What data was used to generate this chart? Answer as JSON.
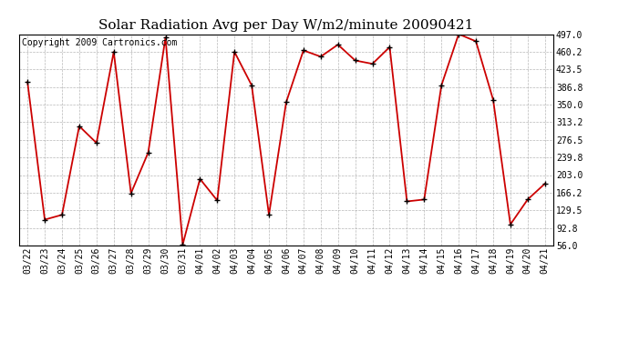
{
  "title": "Solar Radiation Avg per Day W/m2/minute 20090421",
  "copyright_text": "Copyright 2009 Cartronics.com",
  "labels": [
    "03/22",
    "03/23",
    "03/24",
    "03/25",
    "03/26",
    "03/27",
    "03/28",
    "03/29",
    "03/30",
    "03/31",
    "04/01",
    "04/02",
    "04/03",
    "04/04",
    "04/05",
    "04/06",
    "04/07",
    "04/08",
    "04/09",
    "04/10",
    "04/11",
    "04/12",
    "04/13",
    "04/14",
    "04/15",
    "04/16",
    "04/17",
    "04/18",
    "04/19",
    "04/20",
    "04/21"
  ],
  "values": [
    397,
    110,
    120,
    305,
    270,
    460,
    165,
    250,
    490,
    58,
    195,
    150,
    460,
    390,
    120,
    355,
    463,
    450,
    475,
    442,
    435,
    470,
    148,
    152,
    390,
    497,
    482,
    360,
    100,
    152,
    185
  ],
  "line_color": "#cc0000",
  "marker_color": "#000000",
  "bg_color": "#ffffff",
  "grid_color": "#999999",
  "yticks": [
    56.0,
    92.8,
    129.5,
    166.2,
    203.0,
    239.8,
    276.5,
    313.2,
    350.0,
    386.8,
    423.5,
    460.2,
    497.0
  ],
  "ylim": [
    56.0,
    497.0
  ],
  "title_fontsize": 11,
  "tick_fontsize": 7,
  "copyright_fontsize": 7
}
